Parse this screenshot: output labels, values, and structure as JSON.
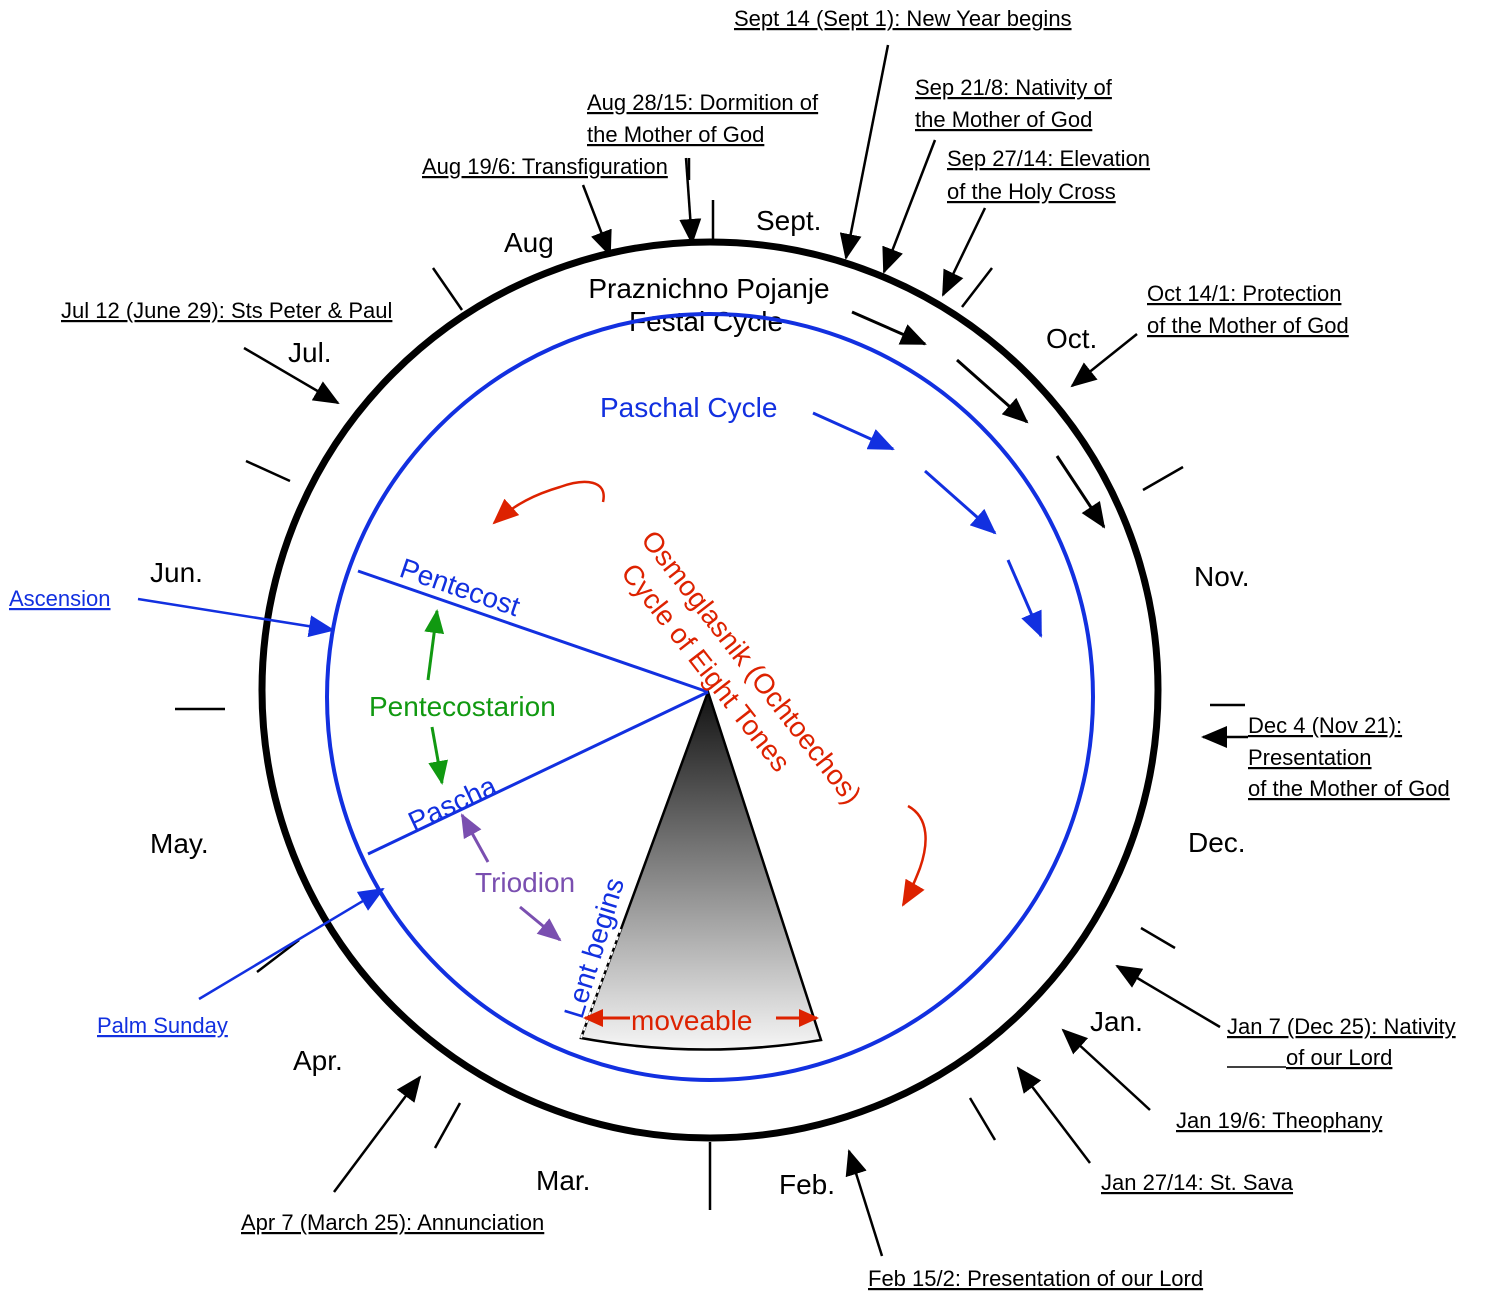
{
  "colors": {
    "black": "#000000",
    "blue": "#1230e0",
    "red": "#dd2200",
    "green": "#119911",
    "purple": "#7a4fb0"
  },
  "months": {
    "sept": "Sept.",
    "oct": "Oct.",
    "nov": "Nov.",
    "dec": "Dec.",
    "jan": "Jan.",
    "feb": "Feb.",
    "mar": "Mar.",
    "apr": "Apr.",
    "may": "May.",
    "jun": "Jun.",
    "jul": "Jul.",
    "aug": "Aug"
  },
  "feasts": {
    "new_year": "Sept 14 (Sept 1): New Year begins",
    "nativity_mog_1": "Sep 21/8: Nativity of",
    "nativity_mog_2": "the Mother of God",
    "cross_1": "Sep 27/14: Elevation",
    "cross_2": "of the Holy Cross",
    "protection_1": "Oct 14/1: Protection",
    "protection_2": "of the Mother of God",
    "presentation_mog_1": "Dec 4 (Nov 21):",
    "presentation_mog_2": "Presentation",
    "presentation_mog_3": "of the Mother of God",
    "nativity_lord_1": "Jan 7 (Dec 25): Nativity",
    "nativity_lord_2": "of our Lord",
    "theophany": "Jan 19/6: Theophany",
    "st_sava": "Jan 27/14: St. Sava",
    "presentation_lord": "Feb 15/2: Presentation of our Lord",
    "annunciation": "Apr 7 (March 25): Annunciation",
    "peter_paul": "Jul 12 (June 29): Sts Peter & Paul",
    "transfiguration": "Aug 19/6: Transfiguration",
    "dormition_1": "Aug 28/15: Dormition of",
    "dormition_2": "the Mother of God"
  },
  "cycles": {
    "festal_1": "Praznichno Pojanje",
    "festal_2": "Festal Cycle",
    "paschal": "Paschal Cycle",
    "osmoglasnik_1": "Osmoglasnik (Ochtoechos)",
    "osmoglasnik_2": "Cycle of Eight Tones"
  },
  "paschal_events": {
    "ascension": "Ascension",
    "palm_sunday": "Palm Sunday",
    "pentecost": "Pentecost",
    "pascha": "Pascha",
    "pentecostarion": "Pentecostarion",
    "triodion": "Triodion",
    "lent_begins": "Lent begins",
    "moveable": "moveable"
  }
}
